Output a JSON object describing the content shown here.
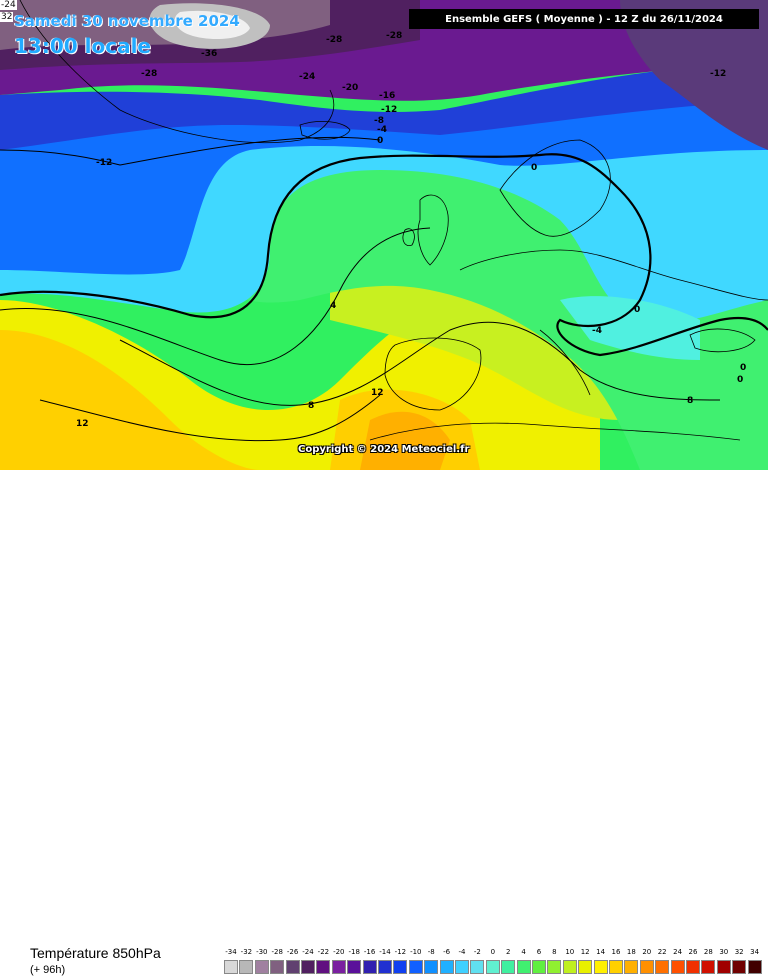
{
  "header": {
    "date_line": "Samedi 30 novembre 2024",
    "time_line": "13:00 locale",
    "model_line": "Ensemble GEFS  ( Moyenne )  -  12 Z du 26/11/2024",
    "corner_top": "-24",
    "corner_bottom": "32"
  },
  "footer": {
    "parameter": "Température 850hPa",
    "lead_time": "(+ 96h)",
    "copyright": "Copyright © 2024 Meteociel.fr"
  },
  "legend_scale": {
    "ticks": [
      "-34",
      "-32",
      "-30",
      "-28",
      "-26",
      "-24",
      "-22",
      "-20",
      "-18",
      "-16",
      "-14",
      "-12",
      "-10",
      "-8",
      "-6",
      "-4",
      "-2",
      "0",
      "2",
      "4",
      "6",
      "8",
      "10",
      "12",
      "14",
      "16",
      "18",
      "20",
      "22",
      "24",
      "26",
      "28",
      "30",
      "32",
      "34"
    ],
    "colors": [
      "#d8d8d8",
      "#b8b8b8",
      "#a080a0",
      "#806080",
      "#604070",
      "#502060",
      "#601080",
      "#7a20a0",
      "#5a109a",
      "#3020b0",
      "#2030d0",
      "#1040f0",
      "#1060ff",
      "#1090ff",
      "#20b0ff",
      "#40d0ff",
      "#60e0f0",
      "#60f0d0",
      "#40f0a0",
      "#40f070",
      "#60f040",
      "#90f030",
      "#c0f020",
      "#e8f000",
      "#fff000",
      "#ffd000",
      "#ffb000",
      "#ff9000",
      "#ff7000",
      "#ff5000",
      "#f03000",
      "#d01000",
      "#a00000",
      "#700000",
      "#400000"
    ]
  },
  "contour_labels": [
    {
      "text": "-36"
    },
    {
      "text": "-28"
    },
    {
      "text": "-28"
    },
    {
      "text": "-28"
    },
    {
      "text": "-24"
    },
    {
      "text": "-20"
    },
    {
      "text": "-16"
    },
    {
      "text": "-12"
    },
    {
      "text": "-8"
    },
    {
      "text": "-4"
    },
    {
      "text": "0"
    },
    {
      "text": "-12"
    },
    {
      "text": "-12"
    },
    {
      "text": "0"
    },
    {
      "text": "4"
    },
    {
      "text": "0"
    },
    {
      "text": "-4"
    },
    {
      "text": "12"
    },
    {
      "text": "8"
    },
    {
      "text": "12"
    },
    {
      "text": "8"
    },
    {
      "text": "0"
    },
    {
      "text": "0"
    }
  ]
}
